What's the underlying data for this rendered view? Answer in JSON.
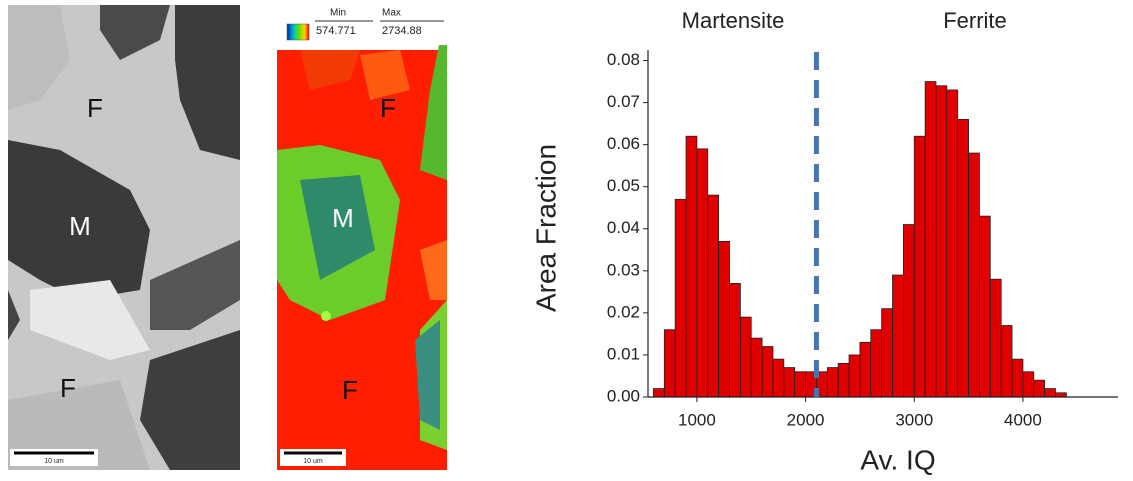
{
  "images": [
    {
      "labels": [
        "F",
        "M",
        "F"
      ],
      "scale_bar": "10 um"
    },
    {
      "labels": [
        "F",
        "M",
        "F"
      ],
      "scale_bar": "10 um",
      "legend": {
        "min_label": "Min",
        "max_label": "Max",
        "min": "574.771",
        "max": "2734.88"
      }
    }
  ],
  "chart_data": {
    "type": "histogram",
    "xlabel": "Av. IQ",
    "ylabel": "Area Fraction",
    "annotations": [
      "Martensite",
      "Ferrite"
    ],
    "threshold": 2100,
    "bins": [
      600,
      700,
      800,
      900,
      1000,
      1100,
      1200,
      1300,
      1400,
      1500,
      1600,
      1700,
      1800,
      1900,
      2000,
      2100,
      2200,
      2300,
      2400,
      2500,
      2600,
      2700,
      2800,
      2900,
      3000,
      3100,
      3200,
      3300,
      3400,
      3500,
      3600,
      3700,
      3800,
      3900,
      4000,
      4100,
      4200,
      4300,
      4400
    ],
    "values": [
      0.002,
      0.016,
      0.047,
      0.062,
      0.059,
      0.048,
      0.037,
      0.027,
      0.019,
      0.014,
      0.012,
      0.009,
      0.007,
      0.006,
      0.006,
      0.006,
      0.007,
      0.008,
      0.01,
      0.013,
      0.016,
      0.021,
      0.029,
      0.041,
      0.062,
      0.075,
      0.074,
      0.073,
      0.066,
      0.058,
      0.043,
      0.028,
      0.017,
      0.009,
      0.006,
      0.004,
      0.002,
      0.001
    ],
    "color": "#e00000",
    "threshold_color": "#4a76b0",
    "xlim": [
      550,
      4875
    ],
    "ylim": [
      0,
      0.0825
    ],
    "xticks": [
      1000,
      2000,
      3000,
      4000
    ],
    "yticks": [
      {
        "value": 0,
        "label": "0.00"
      },
      {
        "value": 0.01,
        "label": "0.01"
      },
      {
        "value": 0.02,
        "label": "0.02"
      },
      {
        "value": 0.03,
        "label": "0.03"
      },
      {
        "value": 0.04,
        "label": "0.04"
      },
      {
        "value": 0.05,
        "label": "0.05"
      },
      {
        "value": 0.06,
        "label": "0.06"
      },
      {
        "value": 0.07,
        "label": "0.07"
      },
      {
        "value": 0.08,
        "label": "0.08"
      }
    ]
  }
}
